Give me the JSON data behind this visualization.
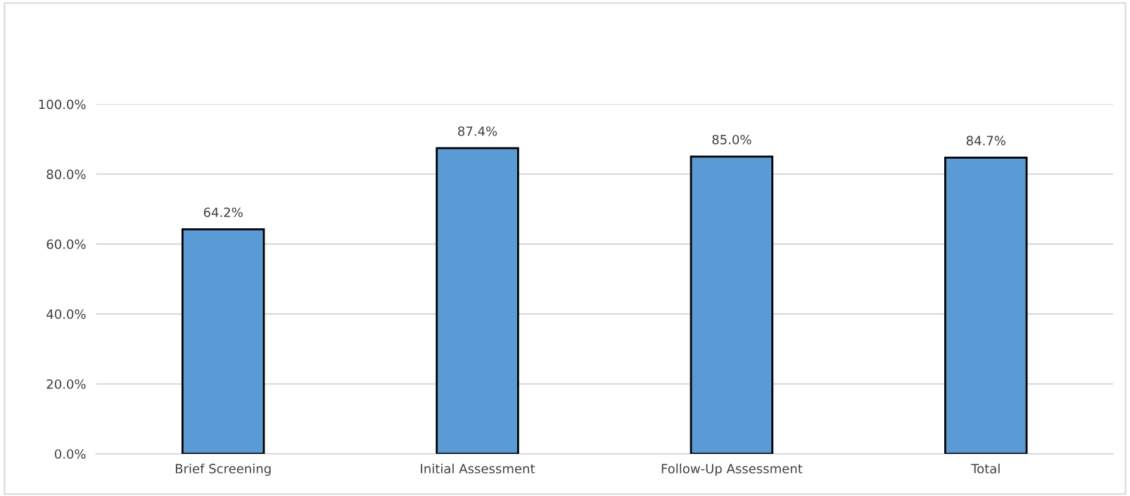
{
  "chart_data": {
    "type": "bar",
    "categories": [
      "Brief Screening",
      "Initial Assessment",
      "Follow-Up Assessment",
      "Total"
    ],
    "values": [
      64.2,
      87.4,
      85.0,
      84.7
    ],
    "value_labels": [
      "64.2%",
      "87.4%",
      "85.0%",
      "84.7%"
    ],
    "color": "#5b9bd5",
    "ylim": [
      0,
      100
    ],
    "yticks": [
      {
        "value": 0,
        "label": "0.0%"
      },
      {
        "value": 20,
        "label": "20.0%"
      },
      {
        "value": 40,
        "label": "40.0%"
      },
      {
        "value": 60,
        "label": "60.0%"
      },
      {
        "value": 80,
        "label": "80.0%"
      },
      {
        "value": 100,
        "label": "100.0%"
      }
    ],
    "grid": "y"
  }
}
